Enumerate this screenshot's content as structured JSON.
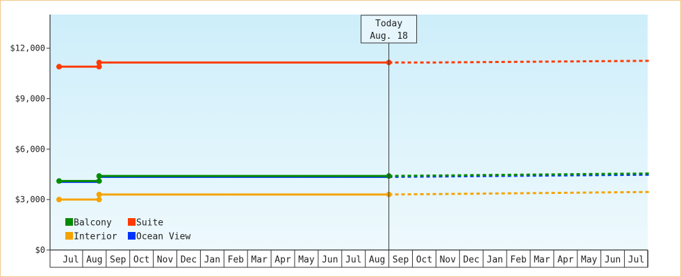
{
  "chart_data": {
    "type": "line",
    "title": "",
    "xlabel": "",
    "ylabel": "",
    "ylim": [
      0,
      14000
    ],
    "y_ticks": [
      0,
      3000,
      6000,
      9000,
      12000
    ],
    "y_tick_labels": [
      "$0",
      "$3,000",
      "$6,000",
      "$9,000",
      "$12,000"
    ],
    "months": [
      "Jul",
      "Aug",
      "Sep",
      "Oct",
      "Nov",
      "Dec",
      "Jan",
      "Feb",
      "Mar",
      "Apr",
      "May",
      "Jun",
      "Jul",
      "Aug",
      "Sep",
      "Oct",
      "Nov",
      "Dec",
      "Jan",
      "Feb",
      "Mar",
      "Apr",
      "May",
      "Jun",
      "Jul"
    ],
    "x_domain_months": [
      -0.1,
      25.1
    ],
    "today": {
      "label_line1": "Today",
      "label_line2": "Aug. 18",
      "x": 14.0
    },
    "legend": {
      "placement": "bottom-left",
      "order": [
        "Balcony",
        "Suite",
        "Interior",
        "Ocean View"
      ]
    },
    "background": {
      "top": "#cdeefa",
      "bottom": "#eef9fd"
    },
    "series": [
      {
        "name": "Suite",
        "color": "#ff3a00",
        "actual": [
          [
            0,
            10900
          ],
          [
            1.7,
            10900
          ],
          [
            1.7,
            11150
          ],
          [
            14.0,
            11150
          ]
        ],
        "markers": [
          [
            0,
            10900
          ],
          [
            1.7,
            10900
          ],
          [
            1.7,
            11150
          ],
          [
            14.0,
            11150
          ]
        ],
        "projected": [
          [
            14.0,
            11150
          ],
          [
            16.0,
            11150
          ],
          [
            25.1,
            11250
          ]
        ]
      },
      {
        "name": "Ocean View",
        "color": "#0033ff",
        "actual": [
          [
            0,
            4050
          ],
          [
            1.7,
            4050
          ],
          [
            1.7,
            4350
          ],
          [
            14.0,
            4350
          ]
        ],
        "markers": [],
        "projected": [
          [
            14.0,
            4350
          ],
          [
            25.1,
            4480
          ]
        ]
      },
      {
        "name": "Balcony",
        "color": "#008a00",
        "actual": [
          [
            0,
            4100
          ],
          [
            1.7,
            4100
          ],
          [
            1.7,
            4400
          ],
          [
            14.0,
            4400
          ]
        ],
        "markers": [
          [
            0,
            4100
          ],
          [
            1.7,
            4100
          ],
          [
            1.7,
            4400
          ],
          [
            14.0,
            4400
          ]
        ],
        "projected": [
          [
            14.0,
            4400
          ],
          [
            25.1,
            4550
          ]
        ]
      },
      {
        "name": "Interior",
        "color": "#f5a300",
        "actual": [
          [
            0,
            3000
          ],
          [
            1.7,
            3000
          ],
          [
            1.7,
            3300
          ],
          [
            14.0,
            3300
          ]
        ],
        "markers": [
          [
            0,
            3000
          ],
          [
            1.7,
            3000
          ],
          [
            1.7,
            3300
          ],
          [
            14.0,
            3300
          ]
        ],
        "projected": [
          [
            14.0,
            3300
          ],
          [
            25.1,
            3450
          ]
        ]
      }
    ]
  }
}
